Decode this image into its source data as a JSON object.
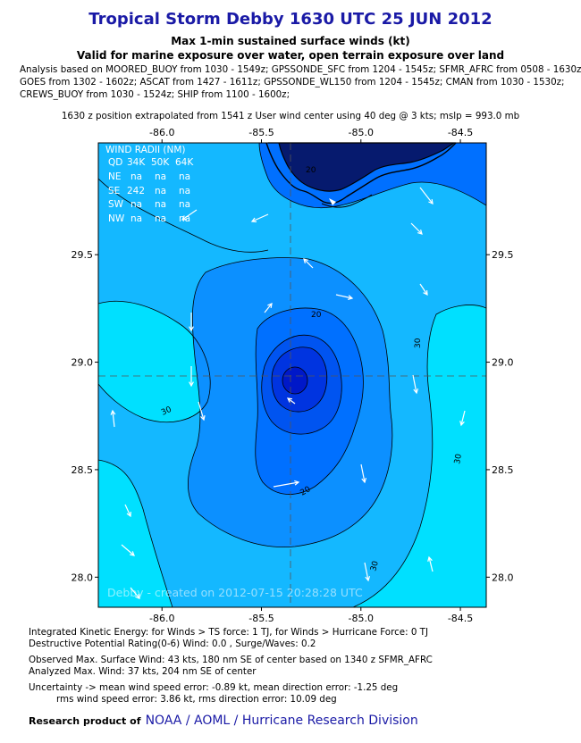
{
  "header": {
    "title": "Tropical Storm Debby 1630 UTC 25 JUN 2012",
    "subtitle1": "Max 1-min sustained surface winds (kt)",
    "subtitle2": "Valid for marine exposure over water, open terrain exposure over land",
    "analysis_lines": [
      "Analysis based on MOORED_BUOY from 1030 - 1549z; GPSSONDE_SFC from 1204 - 1545z; SFMR_AFRC from 0508 - 1630z;",
      "GOES from 1302 - 1602z; ASCAT from 1427 - 1611z; GPSSONDE_WL150 from 1204 - 1545z; CMAN from 1030 - 1530z;",
      "CREWS_BUOY from 1030 - 1524z; SHIP from 1100 - 1600z;"
    ],
    "position_line": "1630 z position extrapolated from 1541 z User wind center using 40 deg @ 3 kts; mslp = 993.0 mb"
  },
  "map": {
    "lon_range": [
      -86.32,
      -84.37
    ],
    "lat_range": [
      27.86,
      30.02
    ],
    "lon_ticks": [
      "-86.0",
      "-85.5",
      "-85.0",
      "-84.5"
    ],
    "lat_ticks": [
      "29.5",
      "29.0",
      "28.5",
      "28.0"
    ],
    "center": {
      "lon": -85.32,
      "lat": 28.86
    },
    "contour_labels": [
      "20",
      "20",
      "30",
      "30",
      "30",
      "20",
      "30"
    ],
    "wind_radii": {
      "title": "WIND RADII (NM)",
      "columns": [
        "QD",
        "34K",
        "50K",
        "64K"
      ],
      "rows": [
        [
          "NE",
          "na",
          "na",
          "na"
        ],
        [
          "SE",
          "242",
          "na",
          "na"
        ],
        [
          "SW",
          "na",
          "na",
          "na"
        ],
        [
          "NW",
          "na",
          "na",
          "na"
        ]
      ]
    },
    "watermark": "Debby - created on 2012-07-15 20:28:28 UTC",
    "colors": {
      "band_over_30": "#00e0ff",
      "band_25_30": "#14b8ff",
      "band_20_25": "#0c90ff",
      "band_15_20": "#0070ff",
      "band_10_15": "#0054f0",
      "band_5_10": "#0034e0",
      "band_0_5": "#0018c8",
      "land": "#061a6e",
      "coast": "#000000"
    }
  },
  "footer": {
    "ike_line": "Integrated Kinetic Energy: for Winds > TS force: 1 TJ, for Winds > Hurricane Force: 0 TJ",
    "dpr_line": "Destructive Potential Rating(0-6)  Wind: 0.0 , Surge/Waves: 0.2",
    "observed_line": "Observed Max. Surface Wind: 43 kts, 180 nm SE of center based on 1340 z SFMR_AFRC",
    "analyzed_line": "Analyzed Max. Wind: 37 kts, 204 nm  SE of center",
    "uncertainty_line": "Uncertainty -> mean wind speed error:  -0.89 kt, mean direction error:  -1.25 deg",
    "rms_line": "rms wind speed error: 3.86 kt, rms direction error: 10.09 deg",
    "research_label": "Research product of",
    "org": "NOAA  /  AOML  /  Hurricane Research Division"
  }
}
